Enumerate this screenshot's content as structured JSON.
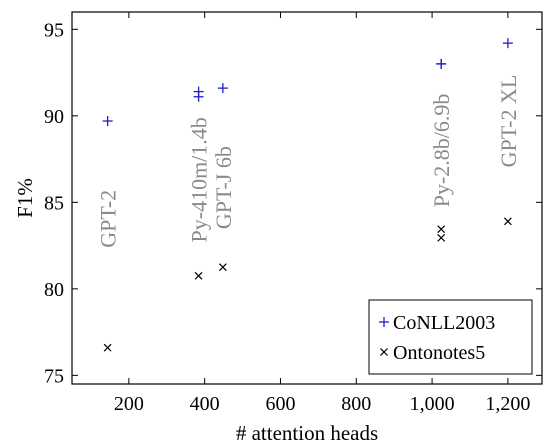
{
  "chart_data": {
    "type": "scatter",
    "xlabel": "# attention heads",
    "ylabel": "F1%",
    "xlim": [
      50,
      1290
    ],
    "ylim": [
      74.5,
      96
    ],
    "xticks": [
      200,
      400,
      600,
      800,
      1000,
      1200
    ],
    "xtick_labels": [
      "200",
      "400",
      "600",
      "800",
      "1,000",
      "1,200"
    ],
    "yticks": [
      75,
      80,
      85,
      90,
      95
    ],
    "ytick_labels": [
      "75",
      "80",
      "85",
      "90",
      "95"
    ],
    "grid": false,
    "legend_position": "bottom-right",
    "series": [
      {
        "name": "CoNLL2003",
        "marker": "+",
        "color": "#1f1fc8",
        "points": [
          {
            "x": 144,
            "y": 89.7
          },
          {
            "x": 384,
            "y": 91.1
          },
          {
            "x": 384,
            "y": 91.4
          },
          {
            "x": 448,
            "y": 91.6
          },
          {
            "x": 1024,
            "y": 93.0
          },
          {
            "x": 1024,
            "y": 93.0
          },
          {
            "x": 1200,
            "y": 94.2
          }
        ]
      },
      {
        "name": "Ontonotes5",
        "marker": "x",
        "color": "#000000",
        "points": [
          {
            "x": 144,
            "y": 76.6
          },
          {
            "x": 384,
            "y": 80.75
          },
          {
            "x": 448,
            "y": 81.25
          },
          {
            "x": 1024,
            "y": 82.95
          },
          {
            "x": 1024,
            "y": 83.45
          },
          {
            "x": 1200,
            "y": 83.9
          }
        ]
      }
    ],
    "annotations": [
      {
        "text": "GPT-2",
        "x": 144,
        "y": 84.05
      },
      {
        "text": "Py-410m/1.4b",
        "x": 384,
        "y": 86.3
      },
      {
        "text": "GPT-J 6b",
        "x": 448,
        "y": 85.85
      },
      {
        "text": "Py-2.8b/6.9b",
        "x": 1024,
        "y": 88.0
      },
      {
        "text": "GPT-2 XL",
        "x": 1200,
        "y": 89.7
      }
    ]
  }
}
